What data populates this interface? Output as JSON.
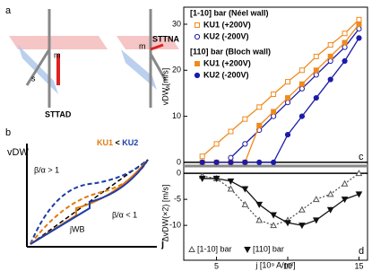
{
  "panel_a": {
    "letter": "a",
    "left": {
      "m": "m",
      "s": "s",
      "stt": "STTAD"
    },
    "right": {
      "m": "m",
      "s": "s",
      "stt": "STTNA"
    }
  },
  "panel_b": {
    "letter": "b",
    "ylabel": "vDW",
    "xlabel": "j",
    "ku1": "KU1",
    "lt": " < ",
    "ku2": "KU2",
    "beta_gt": "β/α > 1",
    "beta_lt": "β/α < 1",
    "jwb": "jWB"
  },
  "chart_data": [
    {
      "type": "line",
      "panel": "c",
      "ylabel": "vDW [m/s]",
      "xlim": [
        2.7,
        15.6
      ],
      "ylim": [
        -0.8,
        33.7
      ],
      "yticks": [
        0,
        10,
        20,
        30
      ],
      "legend_headers": [
        "[1-10] bar (Néel wall)",
        "[110] bar (Bloch wall)"
      ],
      "series": [
        {
          "name": "KU1 (+200V)",
          "color": "#f08a1c",
          "marker": "square-open",
          "x": [
            4,
            5,
            6,
            7,
            8,
            9,
            10,
            11,
            12,
            13,
            14,
            15
          ],
          "values": [
            1.3,
            4,
            6.7,
            9.4,
            12,
            14.8,
            17.5,
            20,
            23,
            25.5,
            28,
            31
          ]
        },
        {
          "name": "KU2 (-200V)",
          "color": "#1c1ca8",
          "marker": "circle-open",
          "x": [
            6,
            7,
            8,
            9,
            10,
            11,
            12,
            13,
            14,
            15
          ],
          "values": [
            1,
            4,
            7,
            10,
            13,
            16,
            19,
            22,
            25,
            29
          ]
        },
        {
          "name": "KU1 (+200V)",
          "color": "#f08a1c",
          "marker": "square",
          "x": [
            4,
            5,
            6,
            7,
            8,
            9,
            10,
            11,
            12,
            13,
            14,
            15
          ],
          "values": [
            0,
            0,
            0,
            0,
            8,
            11,
            14,
            17,
            20,
            23,
            26,
            30
          ]
        },
        {
          "name": "KU2 (-200V)",
          "color": "#1c1ca8",
          "marker": "circle",
          "x": [
            4,
            5,
            6,
            7,
            8,
            9,
            10,
            11,
            12,
            13,
            14,
            15
          ],
          "values": [
            0,
            0,
            0,
            0,
            0,
            0,
            6,
            10,
            14,
            18,
            22,
            27
          ]
        }
      ]
    },
    {
      "type": "line",
      "panel": "d",
      "ylabel": "ΔvDW(×2) [m/s]",
      "xlabel": "j [10⁹ A/m²]",
      "xlim": [
        2.7,
        15.6
      ],
      "ylim": [
        -16.7,
        1.4
      ],
      "yticks": [
        0,
        -5,
        -10
      ],
      "xticks": [
        5,
        10,
        15
      ],
      "series": [
        {
          "name": "[1-10] bar",
          "color": "#555555",
          "marker": "triangle-open",
          "dash": "2,2",
          "x": [
            4,
            5,
            6,
            7,
            8,
            9,
            10,
            11,
            12,
            13,
            14,
            15
          ],
          "values": [
            -0.5,
            -1,
            -3,
            -6,
            -9,
            -10,
            -9,
            -7,
            -5,
            -4,
            -2,
            0
          ]
        },
        {
          "name": "[110] bar",
          "color": "#111111",
          "marker": "triangle-down",
          "dash": "",
          "x": [
            4,
            5,
            6,
            7,
            8,
            9,
            10,
            11,
            12,
            13,
            14,
            15
          ],
          "values": [
            -1,
            -1,
            -1.5,
            -3,
            -6,
            -8,
            -9.5,
            -10,
            -9,
            -7,
            -5,
            -4
          ]
        }
      ]
    }
  ]
}
